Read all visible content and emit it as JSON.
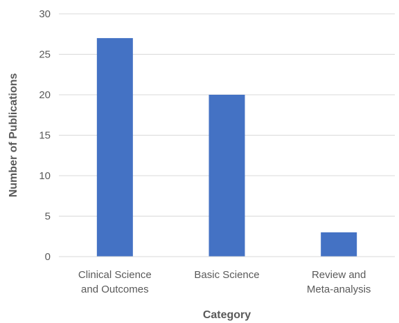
{
  "chart_data": {
    "type": "bar",
    "categories": [
      [
        "Clinical Science",
        "and Outcomes"
      ],
      [
        "Basic Science"
      ],
      [
        "Review and",
        "Meta-analysis"
      ]
    ],
    "values": [
      27,
      20,
      3
    ],
    "xlabel": "Category",
    "ylabel": "Number of Publications",
    "ylim": [
      0,
      30
    ],
    "yticks": [
      0,
      5,
      10,
      15,
      20,
      25,
      30
    ],
    "grid": true,
    "legend": "none",
    "bar_color": "#4472c4"
  }
}
